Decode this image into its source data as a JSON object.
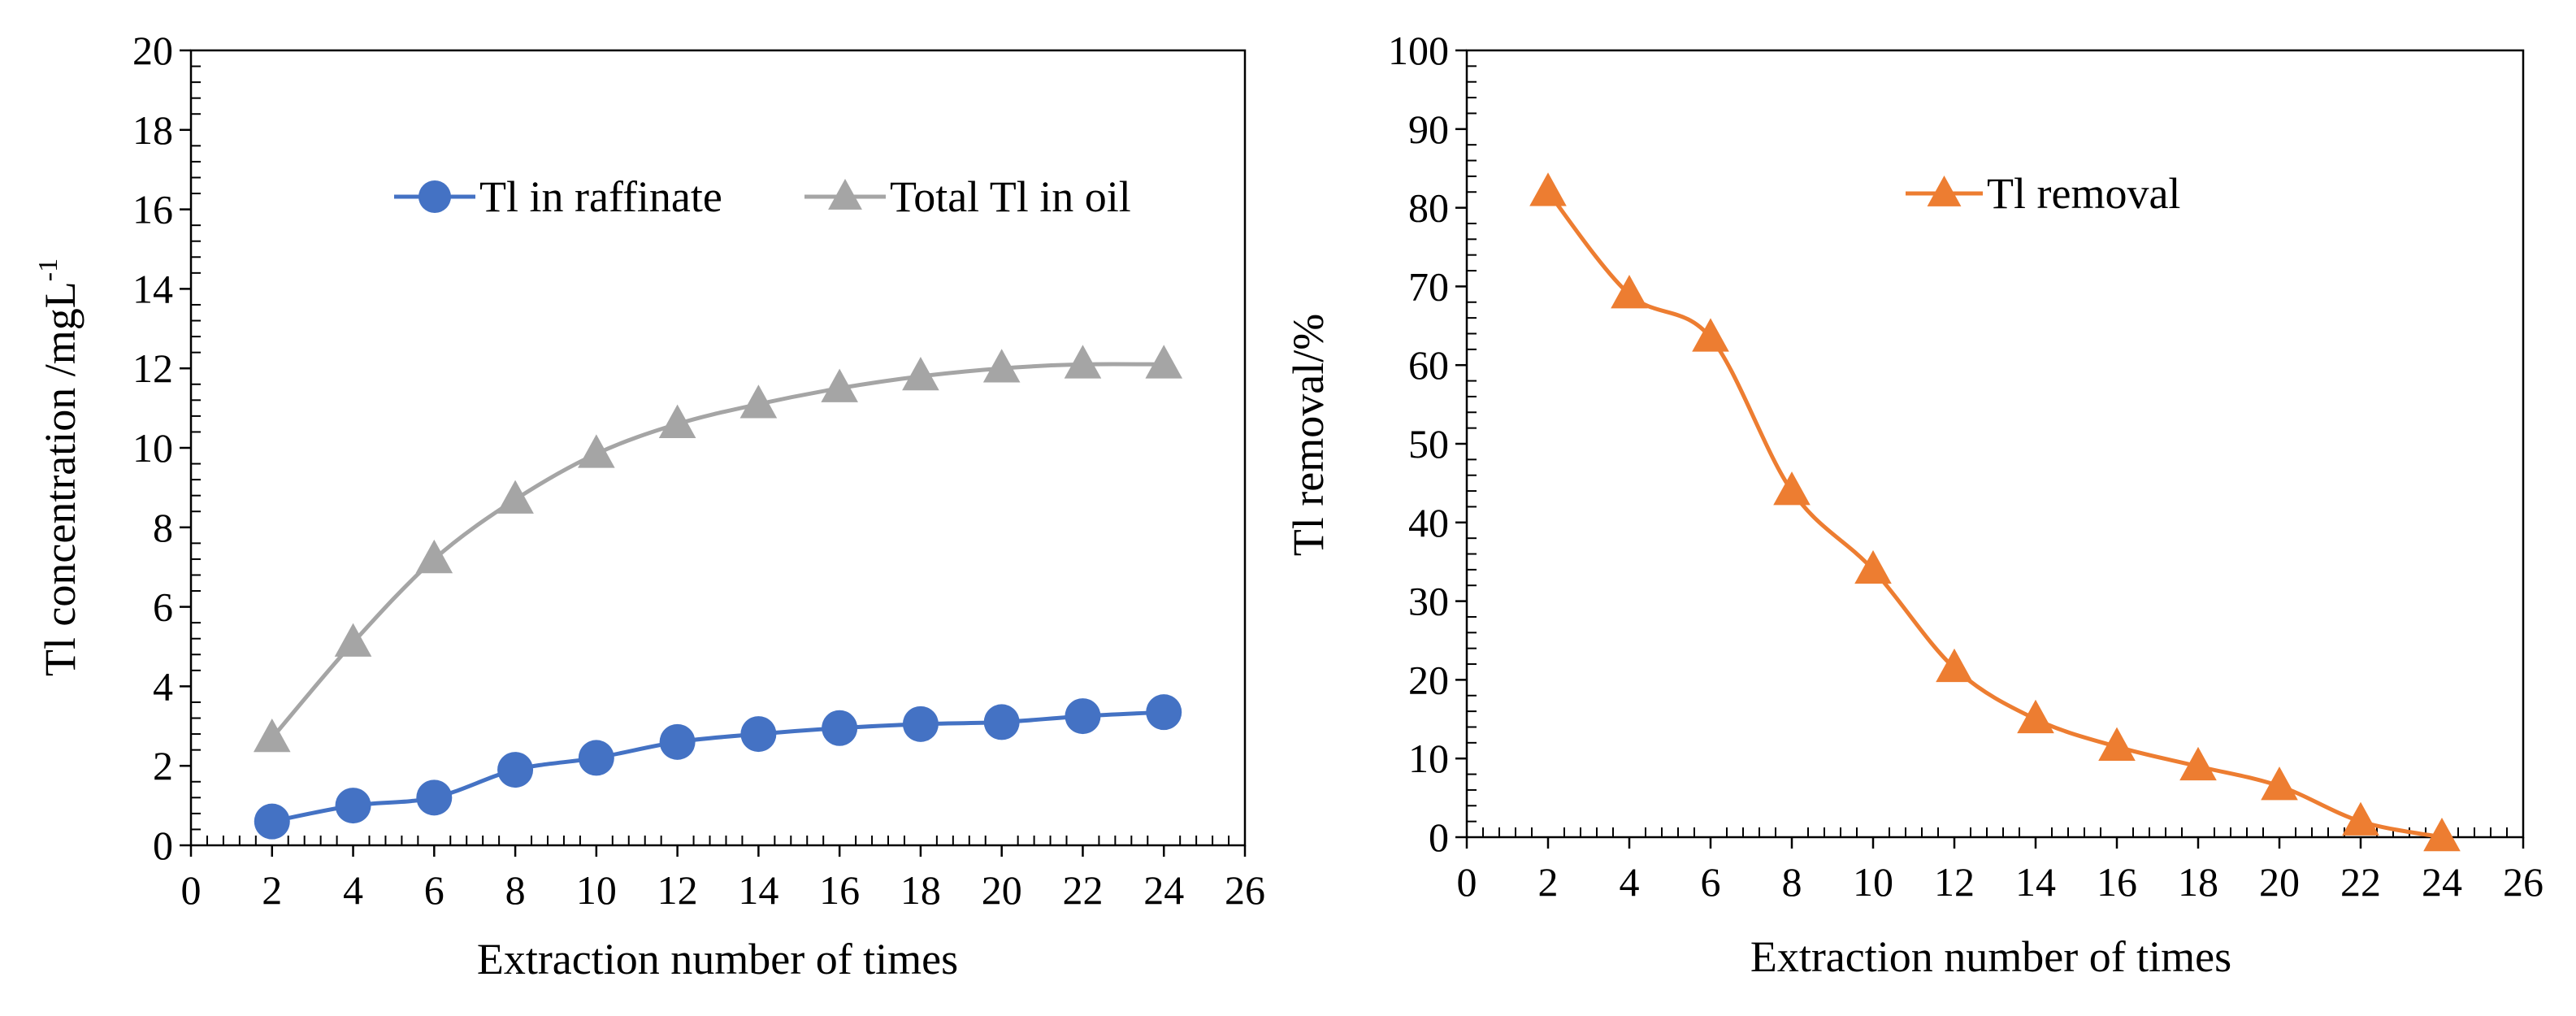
{
  "chart_data": [
    {
      "type": "line",
      "title": "",
      "xlabel": "Extraction number of times",
      "ylabel": "Tl concentration /mgL",
      "ylabel_superscript": "-1",
      "xlim": [
        0,
        26
      ],
      "ylim": [
        0,
        20
      ],
      "xticks": [
        0,
        2,
        4,
        6,
        8,
        10,
        12,
        14,
        16,
        18,
        20,
        22,
        24,
        26
      ],
      "yticks": [
        0,
        2,
        4,
        6,
        8,
        10,
        12,
        14,
        16,
        18,
        20
      ],
      "grid": false,
      "legend_position": "top-right",
      "x": [
        2,
        4,
        6,
        8,
        10,
        12,
        14,
        16,
        18,
        20,
        22,
        24
      ],
      "series": [
        {
          "name": "Tl in raffinate",
          "color": "#4472C4",
          "marker": "circle",
          "values": [
            0.6,
            1.0,
            1.2,
            1.9,
            2.2,
            2.6,
            2.8,
            2.95,
            3.05,
            3.1,
            3.25,
            3.35
          ]
        },
        {
          "name": "Total Tl in oil",
          "color": "#A5A5A5",
          "marker": "triangle",
          "values": [
            2.7,
            5.1,
            7.2,
            8.7,
            9.85,
            10.6,
            11.1,
            11.5,
            11.8,
            12.0,
            12.1,
            12.1
          ]
        }
      ]
    },
    {
      "type": "line",
      "title": "",
      "xlabel": "Extraction number of times",
      "ylabel": "Tl removal/%",
      "xlim": [
        0,
        26
      ],
      "ylim": [
        0,
        100
      ],
      "xticks": [
        0,
        2,
        4,
        6,
        8,
        10,
        12,
        14,
        16,
        18,
        20,
        22,
        24,
        26
      ],
      "yticks": [
        0,
        10,
        20,
        30,
        40,
        50,
        60,
        70,
        80,
        90,
        100
      ],
      "grid": false,
      "legend_position": "top-center",
      "x": [
        2,
        4,
        6,
        8,
        10,
        12,
        14,
        16,
        18,
        20,
        22,
        24
      ],
      "series": [
        {
          "name": "Tl removal",
          "color": "#ED7D31",
          "marker": "triangle",
          "values": [
            82,
            69,
            63.5,
            44,
            34,
            21.5,
            15,
            11.5,
            9,
            6.5,
            2,
            0
          ]
        }
      ]
    }
  ]
}
